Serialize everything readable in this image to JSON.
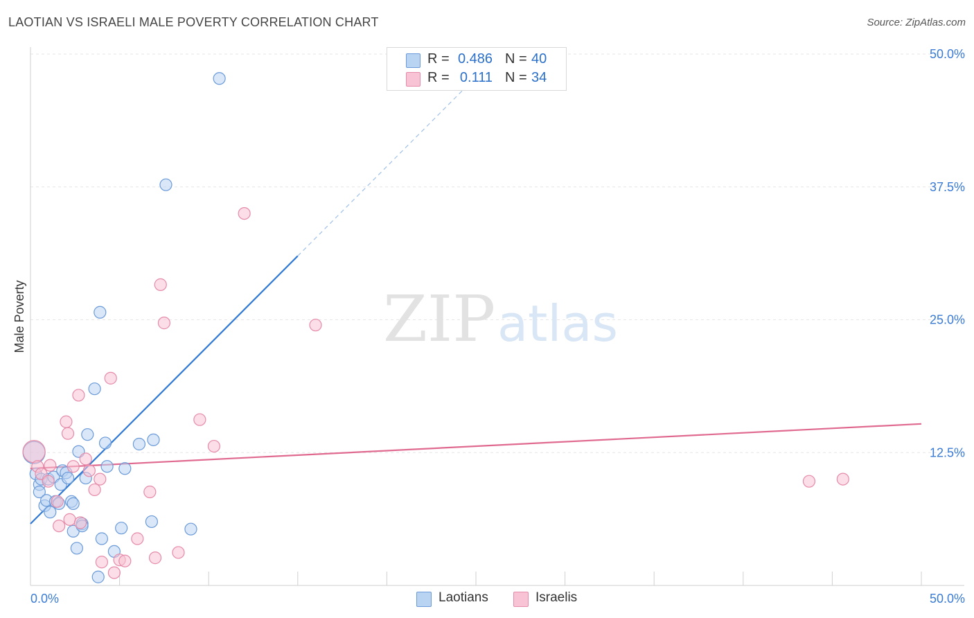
{
  "title": "LAOTIAN VS ISRAELI MALE POVERTY CORRELATION CHART",
  "source": "Source: ZipAtlas.com",
  "watermark": {
    "zip": "ZIP",
    "atlas": "atlas"
  },
  "legend": {
    "rows": [
      {
        "r_label": "R =",
        "r_value": "0.486",
        "n_label": "N =",
        "n_value": "40"
      },
      {
        "r_label": "R =",
        "r_value": "0.111",
        "n_label": "N =",
        "n_value": "34"
      }
    ]
  },
  "bottom_legend": {
    "laotians": "Laotians",
    "israelis": "Israelis"
  },
  "colors": {
    "blue_fill": "#b9d3f3",
    "blue_stroke": "#6a9ad8",
    "blue_line": "#2f78d4",
    "pink_fill": "#f8c3d4",
    "pink_stroke": "#e58aa8",
    "pink_line": "#e0698f",
    "tick_text": "#3a7bd5"
  },
  "chart_data": {
    "type": "scatter",
    "title": "LAOTIAN VS ISRAELI MALE POVERTY CORRELATION CHART",
    "xlabel": "",
    "ylabel": "Male Poverty",
    "xlim": [
      0,
      50
    ],
    "ylim": [
      0,
      50
    ],
    "x_tick_labels": [
      "0.0%",
      "50.0%"
    ],
    "y_ticks": [
      12.5,
      25.0,
      37.5,
      50.0
    ],
    "y_tick_labels": [
      "12.5%",
      "25.0%",
      "37.5%",
      "50.0%"
    ],
    "series": [
      {
        "name": "Laotians",
        "r": 0.486,
        "n": 40,
        "trend": {
          "x0": 0,
          "y0": 5.8,
          "x1": 15.0,
          "y1": 31.0,
          "dash_to_x": 24.5,
          "dash_to_y": 47.0
        },
        "points": [
          [
            0.2,
            12.5
          ],
          [
            0.3,
            10.5
          ],
          [
            0.5,
            9.5
          ],
          [
            0.5,
            8.8
          ],
          [
            0.6,
            10.0
          ],
          [
            0.8,
            7.5
          ],
          [
            0.9,
            8.0
          ],
          [
            1.0,
            10.0
          ],
          [
            1.1,
            6.9
          ],
          [
            1.3,
            10.2
          ],
          [
            1.4,
            7.9
          ],
          [
            1.6,
            7.7
          ],
          [
            1.7,
            9.5
          ],
          [
            1.8,
            10.8
          ],
          [
            2.0,
            10.6
          ],
          [
            2.1,
            10.1
          ],
          [
            2.3,
            7.9
          ],
          [
            2.4,
            5.1
          ],
          [
            2.4,
            7.7
          ],
          [
            2.6,
            3.5
          ],
          [
            2.7,
            12.6
          ],
          [
            2.9,
            5.8
          ],
          [
            3.1,
            10.1
          ],
          [
            3.2,
            14.2
          ],
          [
            3.6,
            18.5
          ],
          [
            3.9,
            25.7
          ],
          [
            4.0,
            4.4
          ],
          [
            4.2,
            13.4
          ],
          [
            4.3,
            11.2
          ],
          [
            4.7,
            3.2
          ],
          [
            3.8,
            0.8
          ],
          [
            5.1,
            5.4
          ],
          [
            5.3,
            11.0
          ],
          [
            6.1,
            13.3
          ],
          [
            6.8,
            6.0
          ],
          [
            6.9,
            13.7
          ],
          [
            7.6,
            37.7
          ],
          [
            9.0,
            5.3
          ],
          [
            10.6,
            47.7
          ],
          [
            2.9,
            5.6
          ]
        ]
      },
      {
        "name": "Israelis",
        "r": 0.111,
        "n": 34,
        "trend": {
          "x0": 0,
          "y0": 11.0,
          "x1": 50.0,
          "y1": 15.2
        },
        "points": [
          [
            0.2,
            12.6
          ],
          [
            0.4,
            11.2
          ],
          [
            0.6,
            10.5
          ],
          [
            1.0,
            9.8
          ],
          [
            1.1,
            11.3
          ],
          [
            1.5,
            7.9
          ],
          [
            1.6,
            5.6
          ],
          [
            2.0,
            15.4
          ],
          [
            2.1,
            14.3
          ],
          [
            2.2,
            6.2
          ],
          [
            2.4,
            11.2
          ],
          [
            2.7,
            17.9
          ],
          [
            2.8,
            5.9
          ],
          [
            3.1,
            11.9
          ],
          [
            3.3,
            10.8
          ],
          [
            3.6,
            9.0
          ],
          [
            3.9,
            10.0
          ],
          [
            4.0,
            2.2
          ],
          [
            4.5,
            19.5
          ],
          [
            4.7,
            1.2
          ],
          [
            5.0,
            2.4
          ],
          [
            5.3,
            2.3
          ],
          [
            6.0,
            4.4
          ],
          [
            6.7,
            8.8
          ],
          [
            7.0,
            2.6
          ],
          [
            7.3,
            28.3
          ],
          [
            7.5,
            24.7
          ],
          [
            8.3,
            3.1
          ],
          [
            9.5,
            15.6
          ],
          [
            10.3,
            13.1
          ],
          [
            12.0,
            35.0
          ],
          [
            16.0,
            24.5
          ],
          [
            43.7,
            9.8
          ],
          [
            45.6,
            10.0
          ]
        ]
      }
    ]
  }
}
